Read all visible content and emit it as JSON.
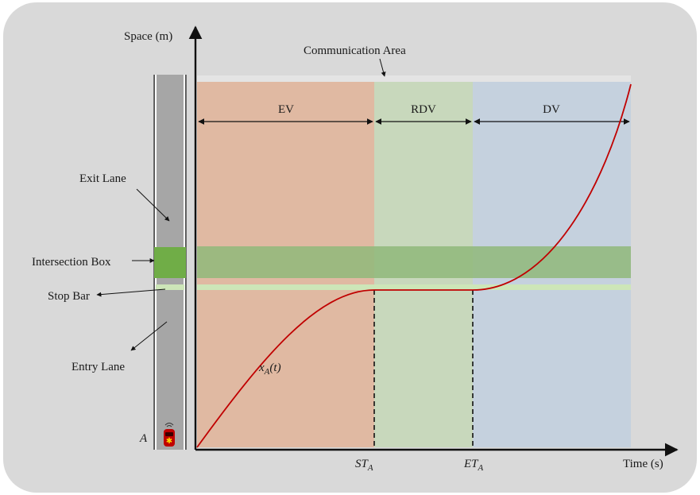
{
  "axes": {
    "y_label": "Space (m)",
    "x_label": "Time (s)"
  },
  "communication_area": {
    "label": "Communication Area"
  },
  "zones": [
    {
      "id": "ev",
      "label": "EV",
      "color": "#e0b9a2"
    },
    {
      "id": "rdv",
      "label": "RDV",
      "color": "#c8d8bc"
    },
    {
      "id": "dv",
      "label": "DV",
      "color": "#c5d1de"
    }
  ],
  "time_marks": {
    "start": {
      "main": "ST",
      "sub": "A"
    },
    "end": {
      "main": "ET",
      "sub": "A"
    }
  },
  "trajectory": {
    "label_main": "x",
    "label_sub": "A",
    "label_arg": "(t)",
    "color": "#c00000"
  },
  "road_labels": {
    "exit_lane": "Exit Lane",
    "intersection_box": "Intersection Box",
    "stop_bar": "Stop Bar",
    "entry_lane": "Entry Lane"
  },
  "vehicle": {
    "label": "A",
    "icon": "car-icon",
    "color": "#c00000"
  },
  "colors": {
    "background": "#d9d9d9",
    "road": "#a6a6a6",
    "intersection_box": "#70ad47",
    "intersection_band": "#8fb87a",
    "stop_bar": "#cde6b8",
    "comm_bar": "#e4e4e4"
  }
}
